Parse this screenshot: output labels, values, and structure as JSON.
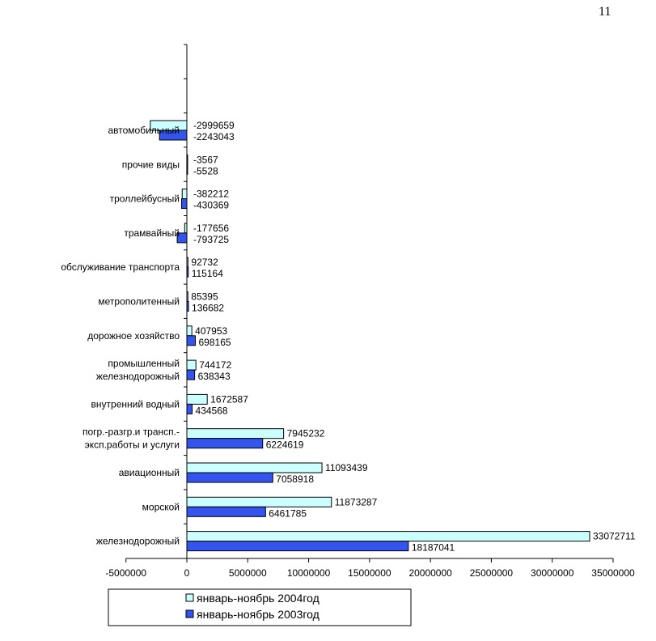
{
  "page_number": "11",
  "colors": {
    "series_2004": "#ccffff",
    "series_2003": "#3355ee",
    "outline": "#000000"
  },
  "chart_data": {
    "type": "bar",
    "orientation": "horizontal",
    "title": "",
    "xlabel": "",
    "ylabel": "",
    "xlim": [
      -5000000,
      35000000
    ],
    "x_ticks": [
      "-5000000",
      "0",
      "5000000",
      "10000000",
      "15000000",
      "20000000",
      "25000000",
      "30000000",
      "35000000"
    ],
    "grid": false,
    "legend_position": "bottom",
    "categories": [
      [
        "автомобильный"
      ],
      [
        "прочие виды"
      ],
      [
        "троллейбусный"
      ],
      [
        "трамвайный"
      ],
      [
        "обслуживание транспорта"
      ],
      [
        "метрополитенный"
      ],
      [
        "дорожное хозяйство"
      ],
      [
        "промышленный",
        "железнодорожный"
      ],
      [
        "внутренний водный"
      ],
      [
        "погр.-разгр.и трансп.-",
        "эксп.работы и услуги"
      ],
      [
        "авиационный"
      ],
      [
        "морской"
      ],
      [
        "железнодорожный"
      ]
    ],
    "series": [
      {
        "name": "январь-ноябрь 2004год",
        "values": [
          -2999659,
          -3567,
          -382212,
          -177656,
          92732,
          85395,
          407953,
          744172,
          1672587,
          7945232,
          11093439,
          11873287,
          33072711
        ],
        "labels": [
          "-2999659",
          "-3567",
          "-382212",
          "-177656",
          "92732",
          "85395",
          "407953",
          "744172",
          "1672587",
          "7945232",
          "11093439",
          "11873287",
          "33072711"
        ]
      },
      {
        "name": "январь-ноябрь 2003год",
        "values": [
          -2243043,
          -5528,
          -430369,
          -793725,
          115164,
          136682,
          698165,
          638343,
          434568,
          6224619,
          7058918,
          6461785,
          18187041
        ],
        "labels": [
          "-2243043",
          "-5528",
          "-430369",
          "-793725",
          "115164",
          "136682",
          "698165",
          "638343",
          "434568",
          "6224619",
          "7058918",
          "6461785",
          "18187041"
        ]
      }
    ]
  }
}
